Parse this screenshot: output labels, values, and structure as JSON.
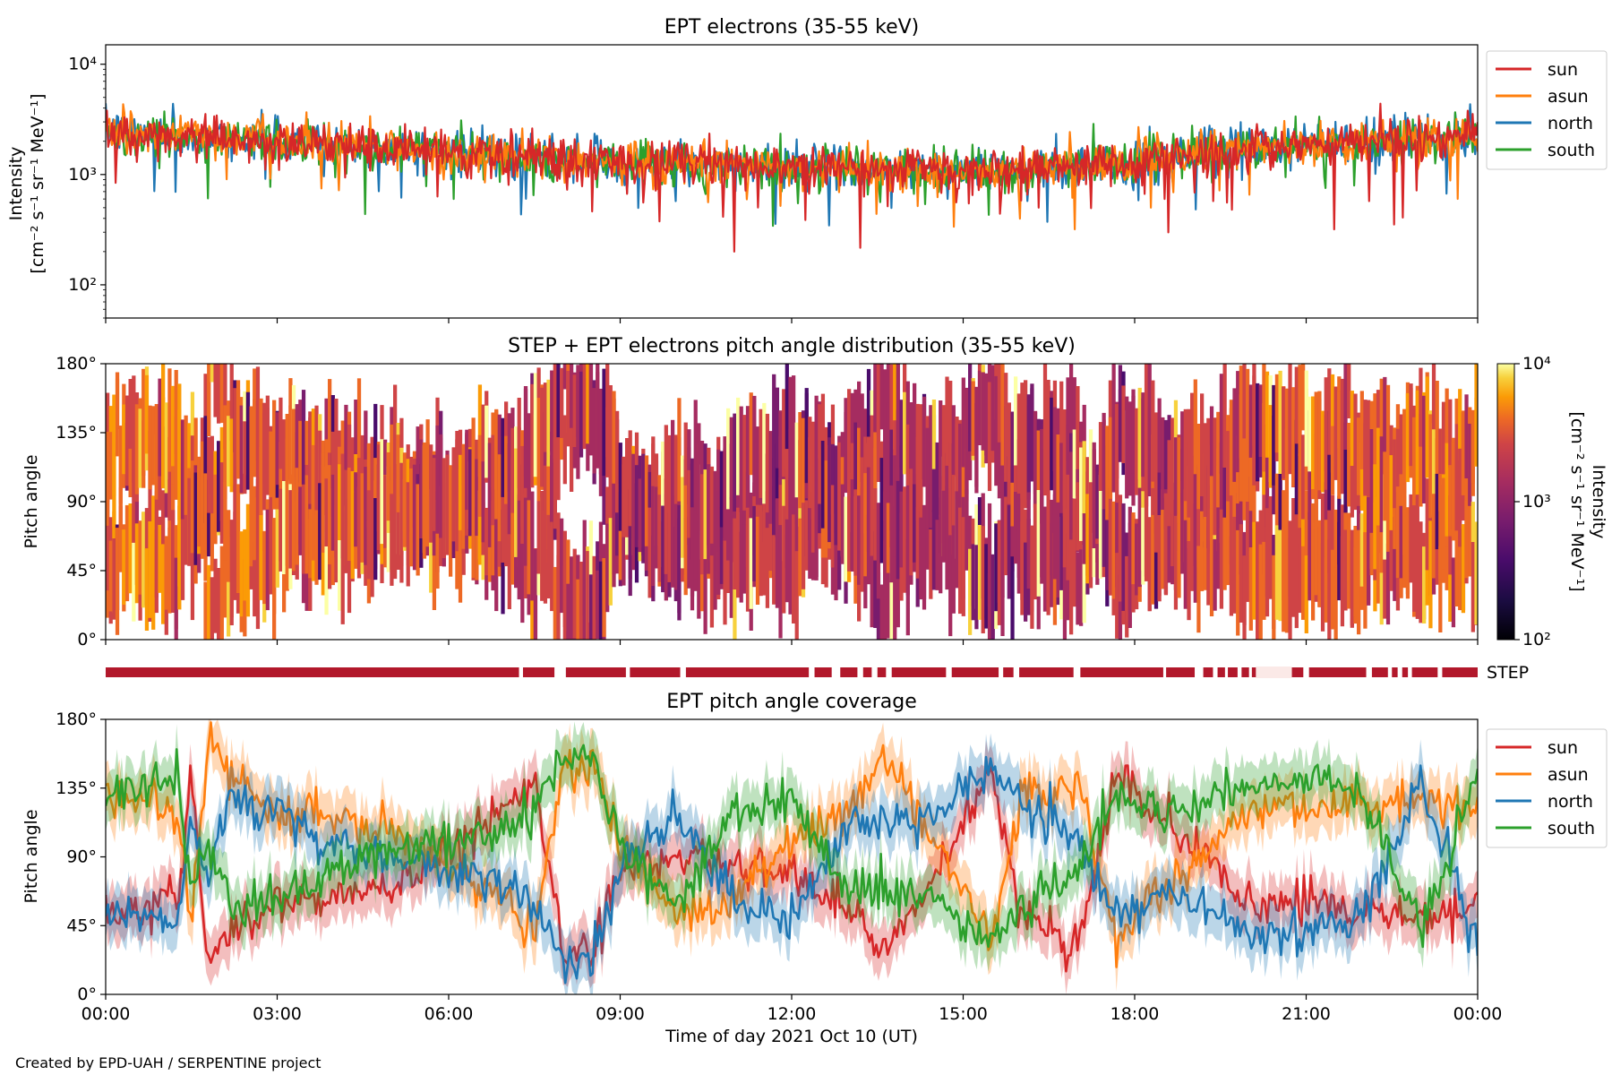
{
  "credit": "Created by EPD-UAH / SERPENTINE project",
  "colors": {
    "sun": "#d62728",
    "asun": "#ff7f0e",
    "north": "#1f77b4",
    "south": "#2ca02c",
    "step_bar": "#b2182b"
  },
  "chart_data": [
    {
      "type": "line",
      "title": "EPT electrons (35-55 keV)",
      "xlabel": "",
      "ylabel_line1": "Intensity",
      "ylabel_line2": "[cm⁻² s⁻¹ sr⁻¹ MeV⁻¹]",
      "yscale": "log",
      "ylim": [
        50,
        15000
      ],
      "yticks": [
        {
          "value": 100,
          "label": "10²"
        },
        {
          "value": 1000,
          "label": "10³"
        },
        {
          "value": 10000,
          "label": "10⁴"
        }
      ],
      "xlim_hours": [
        0,
        24
      ],
      "legend_position": "upper right, outside",
      "series_trend": {
        "x_hours": [
          0,
          1,
          2,
          3,
          4,
          5,
          6,
          7,
          8,
          9,
          10,
          11,
          12,
          13,
          14,
          15,
          16,
          17,
          18,
          19,
          20,
          21,
          22,
          23,
          24
        ],
        "typical_intensity": [
          2400,
          2300,
          2150,
          2000,
          1900,
          1750,
          1600,
          1450,
          1350,
          1300,
          1250,
          1200,
          1150,
          1150,
          1100,
          1100,
          1100,
          1200,
          1350,
          1550,
          1750,
          1900,
          2050,
          2150,
          2200
        ]
      },
      "series": [
        {
          "name": "sun",
          "color": "#d62728"
        },
        {
          "name": "asun",
          "color": "#ff7f0e"
        },
        {
          "name": "north",
          "color": "#1f77b4"
        },
        {
          "name": "south",
          "color": "#2ca02c"
        }
      ]
    },
    {
      "type": "heatmap",
      "title": "STEP + EPT electrons pitch angle distribution (35-55 keV)",
      "ylabel": "Pitch angle",
      "ylim": [
        0,
        180
      ],
      "yticks": [
        "0°",
        "45°",
        "90°",
        "135°",
        "180°"
      ],
      "colorbar_label_line1": "Intensity",
      "colorbar_label_line2": "[cm⁻² s⁻¹ sr⁻¹ MeV⁻¹]",
      "colorbar_scale": "log",
      "colorbar_range": [
        100,
        10000
      ],
      "colorbar_ticks": [
        "10²",
        "10³",
        "10⁴"
      ],
      "colormap": "inferno"
    },
    {
      "type": "bar",
      "label": "STEP",
      "description_of_gaps_hours": [
        [
          7.23,
          7.3
        ],
        [
          7.85,
          8.05
        ],
        [
          9.1,
          9.17
        ],
        [
          10.05,
          10.15
        ],
        [
          12.3,
          12.4
        ],
        [
          12.7,
          12.85
        ],
        [
          13.15,
          13.25
        ],
        [
          13.4,
          13.5
        ],
        [
          13.65,
          13.75
        ],
        [
          14.7,
          14.8
        ],
        [
          15.62,
          15.7
        ],
        [
          15.88,
          15.98
        ],
        [
          16.93,
          17.05
        ],
        [
          18.5,
          18.55
        ],
        [
          19.05,
          19.2
        ],
        [
          19.37,
          19.45
        ],
        [
          19.58,
          19.63
        ],
        [
          19.8,
          19.87
        ],
        [
          20.0,
          20.05
        ],
        [
          20.12,
          20.75
        ],
        [
          20.95,
          21.05
        ],
        [
          22.05,
          22.15
        ],
        [
          22.43,
          22.5
        ],
        [
          22.6,
          22.68
        ],
        [
          22.78,
          22.85
        ],
        [
          23.3,
          23.38
        ]
      ]
    },
    {
      "type": "line",
      "title": "EPT pitch angle coverage",
      "xlabel": "Time of day 2021 Oct 10 (UT)",
      "ylabel": "Pitch angle",
      "ylim": [
        0,
        180
      ],
      "yticks": [
        "0°",
        "45°",
        "90°",
        "135°",
        "180°"
      ],
      "xlim_hours": [
        0,
        24
      ],
      "xticks": [
        "00:00",
        "03:00",
        "06:00",
        "09:00",
        "12:00",
        "15:00",
        "18:00",
        "21:00",
        "00:00"
      ],
      "legend_position": "upper right, outside",
      "series": [
        {
          "name": "sun",
          "color": "#d62728",
          "x_hours": [
            0,
            0.75,
            1.25,
            1.5,
            1.8,
            2.2,
            3.0,
            4.0,
            5.0,
            6.0,
            7.0,
            7.5,
            8.0,
            8.5,
            9.0,
            10.0,
            11.0,
            12.0,
            13.0,
            13.6,
            14.2,
            15.0,
            15.5,
            16.0,
            17.0,
            17.7,
            18.2,
            19.0,
            20.0,
            21.0,
            22.0,
            23.0,
            24.0
          ],
          "values": [
            50,
            55,
            60,
            135,
            20,
            40,
            60,
            65,
            70,
            95,
            120,
            140,
            30,
            25,
            80,
            90,
            85,
            80,
            60,
            30,
            60,
            110,
            150,
            50,
            35,
            145,
            120,
            100,
            60,
            60,
            55,
            50,
            60
          ]
        },
        {
          "name": "asun",
          "color": "#ff7f0e",
          "x_hours": [
            0,
            0.75,
            1.25,
            1.5,
            1.8,
            2.2,
            3.0,
            4.0,
            5.0,
            6.0,
            7.0,
            7.5,
            8.0,
            8.5,
            9.0,
            10.0,
            11.0,
            12.0,
            13.0,
            13.6,
            14.2,
            15.0,
            15.5,
            16.0,
            17.0,
            17.7,
            18.2,
            19.0,
            20.0,
            21.0,
            22.0,
            23.0,
            24.0
          ],
          "values": [
            130,
            125,
            120,
            45,
            170,
            140,
            120,
            115,
            110,
            85,
            60,
            40,
            150,
            155,
            100,
            50,
            60,
            100,
            120,
            160,
            120,
            70,
            30,
            130,
            140,
            35,
            60,
            80,
            120,
            120,
            125,
            130,
            120
          ]
        },
        {
          "name": "north",
          "color": "#1f77b4",
          "x_hours": [
            0,
            0.75,
            1.25,
            1.5,
            1.8,
            2.2,
            3.0,
            4.0,
            5.0,
            6.0,
            7.0,
            7.5,
            8.0,
            8.5,
            9.0,
            10.0,
            11.0,
            12.0,
            13.0,
            13.6,
            14.2,
            15.0,
            15.5,
            16.0,
            17.0,
            17.7,
            18.2,
            19.0,
            20.0,
            21.0,
            22.0,
            23.0,
            24.0
          ],
          "values": [
            55,
            50,
            45,
            110,
            80,
            130,
            120,
            100,
            90,
            80,
            70,
            60,
            20,
            25,
            80,
            120,
            60,
            50,
            110,
            110,
            110,
            135,
            145,
            125,
            100,
            50,
            60,
            60,
            40,
            40,
            50,
            140,
            30
          ]
        },
        {
          "name": "south",
          "color": "#2ca02c",
          "x_hours": [
            0,
            0.75,
            1.25,
            1.5,
            1.8,
            2.2,
            3.0,
            4.0,
            5.0,
            6.0,
            7.0,
            7.5,
            8.0,
            8.5,
            9.0,
            10.0,
            11.0,
            12.0,
            13.0,
            13.6,
            14.2,
            15.0,
            15.5,
            16.0,
            17.0,
            17.7,
            18.2,
            19.0,
            20.0,
            21.0,
            22.0,
            23.0,
            24.0
          ],
          "values": [
            130,
            135,
            140,
            70,
            100,
            55,
            60,
            80,
            90,
            100,
            110,
            120,
            160,
            155,
            100,
            60,
            120,
            130,
            70,
            70,
            70,
            45,
            35,
            55,
            80,
            130,
            120,
            120,
            140,
            140,
            130,
            40,
            150
          ]
        }
      ]
    }
  ]
}
